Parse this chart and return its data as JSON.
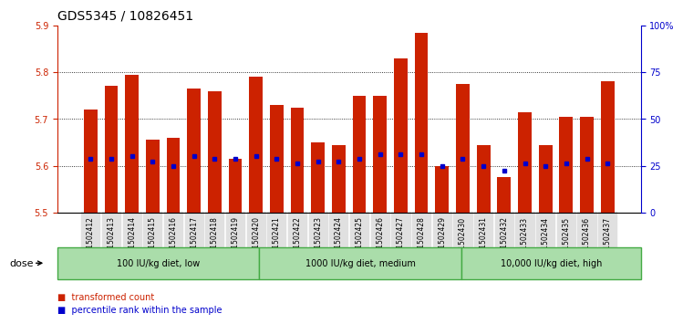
{
  "title": "GDS5345 / 10826451",
  "samples": [
    "GSM1502412",
    "GSM1502413",
    "GSM1502414",
    "GSM1502415",
    "GSM1502416",
    "GSM1502417",
    "GSM1502418",
    "GSM1502419",
    "GSM1502420",
    "GSM1502421",
    "GSM1502422",
    "GSM1502423",
    "GSM1502424",
    "GSM1502425",
    "GSM1502426",
    "GSM1502427",
    "GSM1502428",
    "GSM1502429",
    "GSM1502430",
    "GSM1502431",
    "GSM1502432",
    "GSM1502433",
    "GSM1502434",
    "GSM1502435",
    "GSM1502436",
    "GSM1502437"
  ],
  "bar_tops": [
    5.72,
    5.77,
    5.795,
    5.655,
    5.66,
    5.765,
    5.76,
    5.615,
    5.79,
    5.73,
    5.725,
    5.65,
    5.645,
    5.75,
    5.75,
    5.83,
    5.885,
    5.6,
    5.775,
    5.645,
    5.575,
    5.715,
    5.645,
    5.705,
    5.705,
    5.78
  ],
  "bar_bottoms": [
    5.5,
    5.5,
    5.5,
    5.5,
    5.5,
    5.5,
    5.5,
    5.5,
    5.5,
    5.5,
    5.5,
    5.5,
    5.5,
    5.5,
    5.5,
    5.5,
    5.5,
    5.5,
    5.5,
    5.5,
    5.5,
    5.5,
    5.5,
    5.5,
    5.5,
    5.5
  ],
  "percentile_values": [
    5.615,
    5.615,
    5.62,
    5.61,
    5.6,
    5.62,
    5.615,
    5.615,
    5.62,
    5.615,
    5.605,
    5.61,
    5.61,
    5.615,
    5.625,
    5.625,
    5.625,
    5.6,
    5.615,
    5.6,
    5.59,
    5.605,
    5.6,
    5.605,
    5.615,
    5.605
  ],
  "ylim": [
    5.5,
    5.9
  ],
  "yticks": [
    5.5,
    5.6,
    5.7,
    5.8,
    5.9
  ],
  "right_yticks": [
    0,
    25,
    50,
    75,
    100
  ],
  "right_ylabels": [
    "0",
    "25",
    "50",
    "75",
    "100%"
  ],
  "bar_color": "#cc2200",
  "dot_color": "#0000cc",
  "background_color": "#ffffff",
  "dose_groups": [
    {
      "label": "100 IU/kg diet, low",
      "start": 0,
      "end": 8
    },
    {
      "label": "1000 IU/kg diet, medium",
      "start": 9,
      "end": 17
    },
    {
      "label": "10,000 IU/kg diet, high",
      "start": 18,
      "end": 25
    }
  ],
  "dose_label": "dose",
  "legend_items": [
    {
      "color": "#cc2200",
      "label": "transformed count"
    },
    {
      "color": "#0000cc",
      "label": "percentile rank within the sample"
    }
  ],
  "title_fontsize": 10,
  "tick_fontsize": 7,
  "dose_box_color": "#aaddaa",
  "dose_border_color": "#44aa44"
}
